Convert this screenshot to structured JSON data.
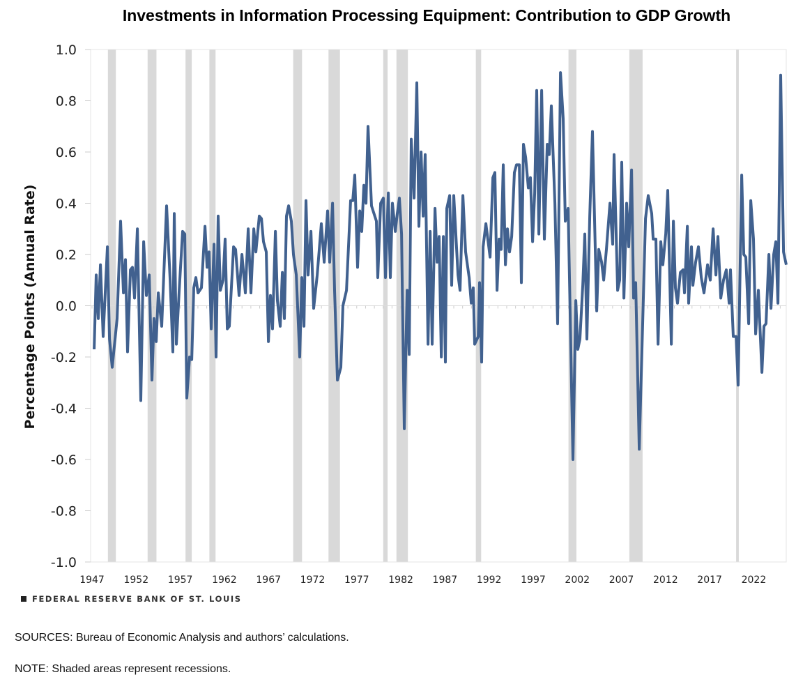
{
  "chart_data": {
    "type": "line",
    "title": "Investments in Information Processing Equipment: Contribution to GDP Growth",
    "xlabel": "",
    "ylabel": "Percentage Points (Annual Rate)",
    "xlim": [
      1946.84,
      2025.68
    ],
    "ylim": [
      -1.0,
      1.0
    ],
    "yticks": [
      "1.0",
      "0.8",
      "0.6",
      "0.4",
      "0.2",
      "0.0",
      "-0.2",
      "-0.4",
      "-0.6",
      "-0.8",
      "-1.0"
    ],
    "ytick_values": [
      1.0,
      0.8,
      0.6,
      0.4,
      0.2,
      0.0,
      -0.2,
      -0.4,
      -0.6,
      -0.8,
      -1.0
    ],
    "xticks": [
      "1947",
      "1952",
      "1957",
      "1962",
      "1967",
      "1972",
      "1977",
      "1982",
      "1987",
      "1992",
      "1997",
      "2002",
      "2007",
      "2012",
      "2017",
      "2022"
    ],
    "grid": false,
    "legend": "none",
    "line_color": "#41618f",
    "recession_color": "#d9d9d9",
    "recessions": [
      [
        1948.8,
        1949.7
      ],
      [
        1953.3,
        1954.3
      ],
      [
        1957.6,
        1958.3
      ],
      [
        1960.3,
        1961.0
      ],
      [
        1969.8,
        1970.8
      ],
      [
        1973.8,
        1975.1
      ],
      [
        1980.0,
        1980.5
      ],
      [
        1981.5,
        1982.8
      ],
      [
        1990.5,
        1991.1
      ],
      [
        2001.0,
        2001.9
      ],
      [
        2007.9,
        2009.4
      ],
      [
        2020.0,
        2020.3
      ]
    ],
    "series": [
      {
        "name": "Contribution to GDP Growth",
        "points": [
          [
            1947.24,
            -0.17
          ],
          [
            1947.47,
            0.12
          ],
          [
            1947.71,
            -0.05
          ],
          [
            1947.95,
            0.16
          ],
          [
            1948.26,
            -0.12
          ],
          [
            1948.74,
            0.23
          ],
          [
            1948.98,
            -0.13
          ],
          [
            1949.29,
            -0.24
          ],
          [
            1949.84,
            -0.05
          ],
          [
            1950.24,
            0.33
          ],
          [
            1950.56,
            0.05
          ],
          [
            1950.79,
            0.18
          ],
          [
            1951.03,
            -0.18
          ],
          [
            1951.35,
            0.14
          ],
          [
            1951.58,
            0.15
          ],
          [
            1951.82,
            0.03
          ],
          [
            1952.14,
            0.3
          ],
          [
            1952.53,
            -0.37
          ],
          [
            1952.85,
            0.25
          ],
          [
            1953.16,
            0.04
          ],
          [
            1953.48,
            0.12
          ],
          [
            1953.79,
            -0.29
          ],
          [
            1954.03,
            -0.05
          ],
          [
            1954.27,
            -0.14
          ],
          [
            1954.51,
            0.05
          ],
          [
            1954.9,
            -0.08
          ],
          [
            1955.45,
            0.39
          ],
          [
            1955.85,
            0.1
          ],
          [
            1956.16,
            -0.18
          ],
          [
            1956.32,
            0.36
          ],
          [
            1956.56,
            -0.15
          ],
          [
            1956.88,
            0.06
          ],
          [
            1957.27,
            0.29
          ],
          [
            1957.51,
            0.28
          ],
          [
            1957.74,
            -0.36
          ],
          [
            1958.06,
            -0.2
          ],
          [
            1958.3,
            -0.21
          ],
          [
            1958.53,
            0.07
          ],
          [
            1958.77,
            0.11
          ],
          [
            1959.01,
            0.05
          ],
          [
            1959.4,
            0.07
          ],
          [
            1959.8,
            0.31
          ],
          [
            1960.04,
            0.15
          ],
          [
            1960.27,
            0.21
          ],
          [
            1960.51,
            -0.09
          ],
          [
            1960.83,
            0.24
          ],
          [
            1961.06,
            -0.2
          ],
          [
            1961.3,
            0.35
          ],
          [
            1961.54,
            0.06
          ],
          [
            1961.85,
            0.1
          ],
          [
            1962.09,
            0.26
          ],
          [
            1962.33,
            -0.09
          ],
          [
            1962.56,
            -0.08
          ],
          [
            1963.04,
            0.23
          ],
          [
            1963.27,
            0.22
          ],
          [
            1963.67,
            0.04
          ],
          [
            1963.99,
            0.2
          ],
          [
            1964.38,
            0.05
          ],
          [
            1964.7,
            0.3
          ],
          [
            1965.01,
            0.05
          ],
          [
            1965.33,
            0.3
          ],
          [
            1965.57,
            0.21
          ],
          [
            1965.96,
            0.35
          ],
          [
            1966.2,
            0.34
          ],
          [
            1966.43,
            0.25
          ],
          [
            1966.75,
            0.21
          ],
          [
            1966.99,
            -0.14
          ],
          [
            1967.22,
            0.04
          ],
          [
            1967.46,
            -0.09
          ],
          [
            1967.78,
            0.29
          ],
          [
            1968.01,
            0.02
          ],
          [
            1968.33,
            -0.08
          ],
          [
            1968.57,
            0.13
          ],
          [
            1968.8,
            -0.05
          ],
          [
            1969.04,
            0.35
          ],
          [
            1969.28,
            0.39
          ],
          [
            1969.59,
            0.33
          ],
          [
            1969.83,
            0.2
          ],
          [
            1970.15,
            0.12
          ],
          [
            1970.54,
            -0.2
          ],
          [
            1970.78,
            0.11
          ],
          [
            1971.02,
            -0.08
          ],
          [
            1971.25,
            0.41
          ],
          [
            1971.49,
            0.12
          ],
          [
            1971.81,
            0.29
          ],
          [
            1972.12,
            -0.01
          ],
          [
            1972.52,
            0.12
          ],
          [
            1972.99,
            0.32
          ],
          [
            1973.31,
            0.17
          ],
          [
            1973.7,
            0.37
          ],
          [
            1973.94,
            0.17
          ],
          [
            1974.26,
            0.4
          ],
          [
            1974.49,
            0.06
          ],
          [
            1974.81,
            -0.29
          ],
          [
            1975.2,
            -0.24
          ],
          [
            1975.44,
            0.0
          ],
          [
            1975.84,
            0.06
          ],
          [
            1976.31,
            0.41
          ],
          [
            1976.55,
            0.41
          ],
          [
            1976.78,
            0.51
          ],
          [
            1977.1,
            0.15
          ],
          [
            1977.34,
            0.37
          ],
          [
            1977.57,
            0.29
          ],
          [
            1977.81,
            0.47
          ],
          [
            1978.05,
            0.4
          ],
          [
            1978.28,
            0.7
          ],
          [
            1978.68,
            0.39
          ],
          [
            1979.23,
            0.33
          ],
          [
            1979.39,
            0.11
          ],
          [
            1979.71,
            0.4
          ],
          [
            1980.02,
            0.42
          ],
          [
            1980.26,
            0.11
          ],
          [
            1980.58,
            0.44
          ],
          [
            1980.81,
            0.11
          ],
          [
            1981.05,
            0.4
          ],
          [
            1981.37,
            0.29
          ],
          [
            1981.6,
            0.36
          ],
          [
            1981.84,
            0.42
          ],
          [
            1982.08,
            0.28
          ],
          [
            1982.39,
            -0.48
          ],
          [
            1982.71,
            0.06
          ],
          [
            1982.95,
            -0.19
          ],
          [
            1983.18,
            0.65
          ],
          [
            1983.5,
            0.42
          ],
          [
            1983.81,
            0.87
          ],
          [
            1984.05,
            0.31
          ],
          [
            1984.29,
            0.6
          ],
          [
            1984.53,
            0.35
          ],
          [
            1984.76,
            0.59
          ],
          [
            1985.08,
            -0.15
          ],
          [
            1985.32,
            0.29
          ],
          [
            1985.55,
            -0.15
          ],
          [
            1985.87,
            0.38
          ],
          [
            1986.11,
            0.17
          ],
          [
            1986.34,
            0.27
          ],
          [
            1986.58,
            -0.2
          ],
          [
            1986.82,
            0.27
          ],
          [
            1987.05,
            -0.22
          ],
          [
            1987.21,
            0.38
          ],
          [
            1987.53,
            0.43
          ],
          [
            1987.76,
            0.08
          ],
          [
            1988.0,
            0.43
          ],
          [
            1988.48,
            0.12
          ],
          [
            1988.71,
            0.06
          ],
          [
            1989.03,
            0.43
          ],
          [
            1989.34,
            0.21
          ],
          [
            1989.74,
            0.11
          ],
          [
            1989.98,
            0.01
          ],
          [
            1990.21,
            0.07
          ],
          [
            1990.37,
            -0.15
          ],
          [
            1990.77,
            -0.12
          ],
          [
            1990.92,
            0.09
          ],
          [
            1991.16,
            -0.22
          ],
          [
            1991.32,
            0.23
          ],
          [
            1991.64,
            0.32
          ],
          [
            1992.11,
            0.19
          ],
          [
            1992.43,
            0.5
          ],
          [
            1992.66,
            0.52
          ],
          [
            1992.9,
            0.06
          ],
          [
            1993.14,
            0.26
          ],
          [
            1993.37,
            0.22
          ],
          [
            1993.61,
            0.55
          ],
          [
            1993.85,
            0.16
          ],
          [
            1994.08,
            0.3
          ],
          [
            1994.32,
            0.21
          ],
          [
            1994.56,
            0.27
          ],
          [
            1994.87,
            0.52
          ],
          [
            1995.11,
            0.55
          ],
          [
            1995.43,
            0.55
          ],
          [
            1995.66,
            0.09
          ],
          [
            1995.9,
            0.63
          ],
          [
            1996.14,
            0.58
          ],
          [
            1996.45,
            0.46
          ],
          [
            1996.69,
            0.5
          ],
          [
            1996.93,
            0.25
          ],
          [
            1997.17,
            0.44
          ],
          [
            1997.4,
            0.84
          ],
          [
            1997.64,
            0.28
          ],
          [
            1997.96,
            0.84
          ],
          [
            1998.27,
            0.26
          ],
          [
            1998.59,
            0.63
          ],
          [
            1998.82,
            0.59
          ],
          [
            1999.06,
            0.78
          ],
          [
            1999.46,
            0.4
          ],
          [
            1999.77,
            -0.07
          ],
          [
            2000.09,
            0.91
          ],
          [
            2000.4,
            0.73
          ],
          [
            2000.64,
            0.33
          ],
          [
            2000.96,
            0.38
          ],
          [
            2001.51,
            -0.6
          ],
          [
            2001.83,
            0.02
          ],
          [
            2002.06,
            -0.17
          ],
          [
            2002.3,
            -0.13
          ],
          [
            2002.62,
            0.08
          ],
          [
            2002.85,
            0.28
          ],
          [
            2003.09,
            -0.13
          ],
          [
            2003.41,
            0.35
          ],
          [
            2003.72,
            0.68
          ],
          [
            2004.2,
            -0.02
          ],
          [
            2004.43,
            0.22
          ],
          [
            2004.75,
            0.17
          ],
          [
            2004.99,
            0.1
          ],
          [
            2005.3,
            0.22
          ],
          [
            2005.7,
            0.4
          ],
          [
            2006.01,
            0.24
          ],
          [
            2006.17,
            0.59
          ],
          [
            2006.57,
            0.06
          ],
          [
            2006.8,
            0.1
          ],
          [
            2007.04,
            0.56
          ],
          [
            2007.28,
            0.03
          ],
          [
            2007.59,
            0.4
          ],
          [
            2007.83,
            0.23
          ],
          [
            2008.15,
            0.53
          ],
          [
            2008.38,
            0.03
          ],
          [
            2008.62,
            0.09
          ],
          [
            2009.02,
            -0.56
          ],
          [
            2009.73,
            0.34
          ],
          [
            2010.04,
            0.43
          ],
          [
            2010.43,
            0.36
          ],
          [
            2010.6,
            0.26
          ],
          [
            2010.91,
            0.26
          ],
          [
            2011.15,
            -0.15
          ],
          [
            2011.46,
            0.25
          ],
          [
            2011.7,
            0.16
          ],
          [
            2012.02,
            0.28
          ],
          [
            2012.25,
            0.45
          ],
          [
            2012.65,
            -0.15
          ],
          [
            2012.89,
            0.33
          ],
          [
            2013.12,
            0.07
          ],
          [
            2013.36,
            0.01
          ],
          [
            2013.68,
            0.13
          ],
          [
            2013.99,
            0.14
          ],
          [
            2014.15,
            0.05
          ],
          [
            2014.47,
            0.31
          ],
          [
            2014.62,
            0.01
          ],
          [
            2014.94,
            0.23
          ],
          [
            2015.1,
            0.08
          ],
          [
            2015.41,
            0.17
          ],
          [
            2015.73,
            0.23
          ],
          [
            2016.05,
            0.11
          ],
          [
            2016.36,
            0.05
          ],
          [
            2016.76,
            0.16
          ],
          [
            2017.07,
            0.1
          ],
          [
            2017.39,
            0.3
          ],
          [
            2017.71,
            0.12
          ],
          [
            2017.94,
            0.27
          ],
          [
            2018.26,
            0.03
          ],
          [
            2018.57,
            0.1
          ],
          [
            2018.89,
            0.14
          ],
          [
            2019.21,
            0.01
          ],
          [
            2019.36,
            0.14
          ],
          [
            2019.68,
            -0.12
          ],
          [
            2020.0,
            -0.12
          ],
          [
            2020.23,
            -0.31
          ],
          [
            2020.63,
            0.51
          ],
          [
            2020.87,
            0.2
          ],
          [
            2021.1,
            0.19
          ],
          [
            2021.42,
            -0.07
          ],
          [
            2021.66,
            0.41
          ],
          [
            2021.97,
            0.26
          ],
          [
            2022.21,
            -0.11
          ],
          [
            2022.52,
            0.06
          ],
          [
            2022.92,
            -0.26
          ],
          [
            2023.16,
            -0.08
          ],
          [
            2023.39,
            -0.07
          ],
          [
            2023.71,
            0.2
          ],
          [
            2023.95,
            -0.01
          ],
          [
            2024.26,
            0.2
          ],
          [
            2024.5,
            0.25
          ],
          [
            2024.74,
            0.01
          ],
          [
            2025.05,
            0.9
          ],
          [
            2025.37,
            0.21
          ],
          [
            2025.68,
            0.16
          ]
        ]
      }
    ]
  },
  "footer": {
    "brand": "FEDERAL RESERVE BANK OF ST. LOUIS",
    "sources": "SOURCES: Bureau of Economic Analysis and authors’ calculations.",
    "note": "NOTE: Shaded areas represent recessions."
  }
}
